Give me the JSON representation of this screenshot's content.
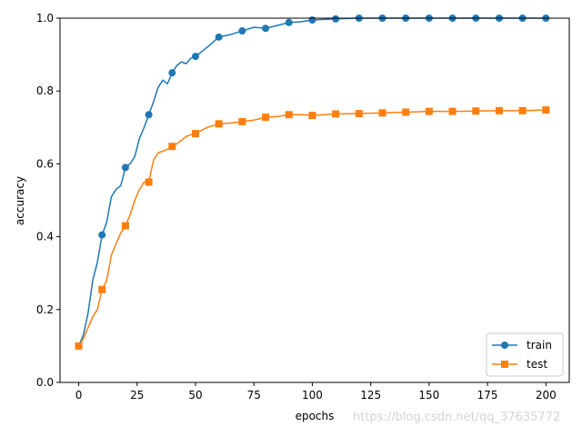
{
  "chart_data": {
    "type": "line",
    "xlabel": "epochs",
    "ylabel": "accuracy",
    "xlim": [
      -8,
      210
    ],
    "ylim": [
      0,
      1.0
    ],
    "x_ticks": [
      0,
      25,
      50,
      75,
      100,
      125,
      150,
      175,
      200
    ],
    "y_ticks": [
      0.0,
      0.2,
      0.4,
      0.6,
      0.8,
      1.0
    ],
    "x_tick_labels": [
      "0",
      "25",
      "50",
      "75",
      "100",
      "125",
      "150",
      "175",
      "200"
    ],
    "y_tick_labels": [
      "0.0",
      "0.2",
      "0.4",
      "0.6",
      "0.8",
      "1.0"
    ],
    "legend_position": "lower-right",
    "grid": false,
    "series": [
      {
        "name": "train",
        "color": "#1f77b4",
        "marker": "circle",
        "x": [
          0,
          2,
          4,
          6,
          8,
          10,
          12,
          14,
          16,
          18,
          20,
          22,
          24,
          26,
          28,
          30,
          32,
          34,
          36,
          38,
          40,
          42,
          44,
          46,
          48,
          50,
          55,
          60,
          65,
          70,
          75,
          80,
          85,
          90,
          95,
          100,
          110,
          120,
          130,
          140,
          150,
          160,
          170,
          180,
          190,
          200
        ],
        "values": [
          0.1,
          0.13,
          0.19,
          0.28,
          0.33,
          0.405,
          0.44,
          0.51,
          0.53,
          0.54,
          0.59,
          0.6,
          0.62,
          0.67,
          0.7,
          0.735,
          0.77,
          0.81,
          0.83,
          0.82,
          0.85,
          0.87,
          0.88,
          0.875,
          0.89,
          0.895,
          0.92,
          0.948,
          0.955,
          0.965,
          0.975,
          0.972,
          0.98,
          0.988,
          0.99,
          0.995,
          0.998,
          1.0,
          1.0,
          1.0,
          1.0,
          1.0,
          1.0,
          1.0,
          1.0,
          1.0
        ],
        "marker_x": [
          0,
          10,
          20,
          30,
          40,
          50,
          60,
          70,
          80,
          90,
          100,
          110,
          120,
          130,
          140,
          150,
          160,
          170,
          180,
          190,
          200
        ],
        "marker_values": [
          0.1,
          0.405,
          0.59,
          0.735,
          0.85,
          0.895,
          0.948,
          0.965,
          0.972,
          0.988,
          0.995,
          0.998,
          1.0,
          1.0,
          1.0,
          1.0,
          1.0,
          1.0,
          1.0,
          1.0,
          1.0
        ]
      },
      {
        "name": "test",
        "color": "#ff7f0e",
        "marker": "square",
        "x": [
          0,
          2,
          4,
          6,
          8,
          10,
          12,
          14,
          16,
          18,
          20,
          22,
          24,
          26,
          28,
          30,
          32,
          34,
          36,
          38,
          40,
          42,
          44,
          46,
          48,
          50,
          55,
          60,
          65,
          70,
          75,
          80,
          85,
          90,
          95,
          100,
          110,
          120,
          130,
          140,
          150,
          160,
          170,
          180,
          190,
          200
        ],
        "values": [
          0.1,
          0.12,
          0.15,
          0.18,
          0.2,
          0.255,
          0.28,
          0.35,
          0.38,
          0.41,
          0.43,
          0.46,
          0.5,
          0.53,
          0.55,
          0.55,
          0.61,
          0.63,
          0.635,
          0.64,
          0.648,
          0.655,
          0.665,
          0.675,
          0.68,
          0.683,
          0.7,
          0.71,
          0.712,
          0.716,
          0.72,
          0.728,
          0.73,
          0.735,
          0.735,
          0.733,
          0.737,
          0.738,
          0.74,
          0.742,
          0.744,
          0.744,
          0.745,
          0.746,
          0.746,
          0.748
        ],
        "marker_x": [
          0,
          10,
          20,
          30,
          40,
          50,
          60,
          70,
          80,
          90,
          100,
          110,
          120,
          130,
          140,
          150,
          160,
          170,
          180,
          190,
          200
        ],
        "marker_values": [
          0.1,
          0.255,
          0.43,
          0.55,
          0.648,
          0.683,
          0.71,
          0.716,
          0.728,
          0.735,
          0.733,
          0.737,
          0.738,
          0.74,
          0.742,
          0.744,
          0.744,
          0.745,
          0.746,
          0.746,
          0.748
        ]
      }
    ]
  },
  "watermark": "https://blog.csdn.net/qq_37635772"
}
